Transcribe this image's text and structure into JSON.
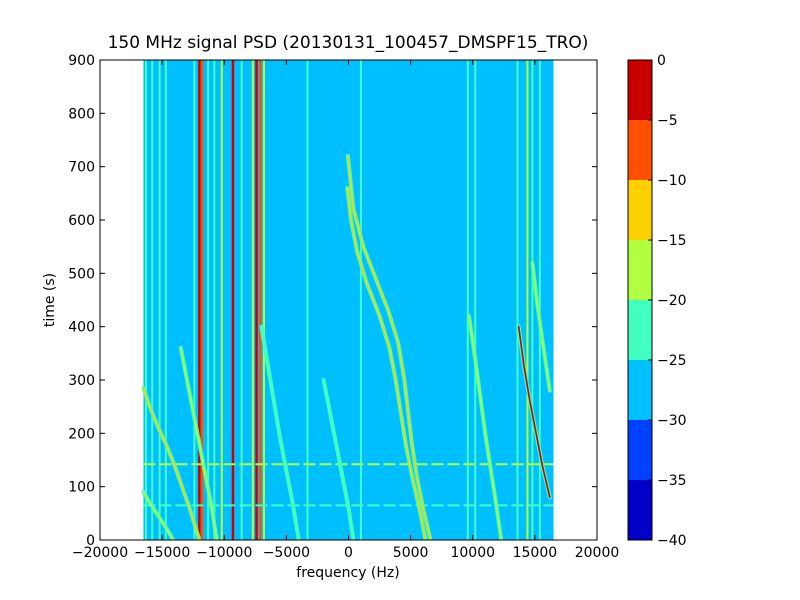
{
  "chart_data": {
    "type": "heatmap",
    "title": "150 MHz signal PSD (20130131_100457_DMSPF15_TRO)",
    "xlabel": "frequency (Hz)",
    "ylabel": "time (s)",
    "xlim": [
      -20000,
      20000
    ],
    "ylim": [
      0,
      900
    ],
    "x_ticks": [
      -20000,
      -15000,
      -10000,
      -5000,
      0,
      5000,
      10000,
      15000,
      20000
    ],
    "y_ticks": [
      0,
      100,
      200,
      300,
      400,
      500,
      600,
      700,
      800,
      900
    ],
    "data_extent_x": [
      -16500,
      16500
    ],
    "colorbar": {
      "levels": [
        -40,
        -35,
        -30,
        -25,
        -20,
        -15,
        -10,
        -5,
        0
      ],
      "ticks": [
        -40,
        -35,
        -30,
        -25,
        -20,
        -15,
        -10,
        -5,
        0
      ],
      "colors": [
        "#0000c8",
        "#0040ff",
        "#00bfff",
        "#40ffc0",
        "#b0ff40",
        "#ffd000",
        "#ff5000",
        "#c80000"
      ],
      "background_level_index": 2
    },
    "vertical_lines": [
      {
        "x": -16300,
        "level": 3
      },
      {
        "x": -15800,
        "level": 3
      },
      {
        "x": -15200,
        "level": 3
      },
      {
        "x": -14700,
        "level": 3
      },
      {
        "x": -12400,
        "level": 3
      },
      {
        "x": -12000,
        "level": 7
      },
      {
        "x": -11800,
        "level": 6
      },
      {
        "x": -11300,
        "level": 3
      },
      {
        "x": -10800,
        "level": 3
      },
      {
        "x": -10200,
        "level": 4
      },
      {
        "x": -9300,
        "level": 7
      },
      {
        "x": -8600,
        "level": 3
      },
      {
        "x": -7700,
        "level": 4
      },
      {
        "x": -7400,
        "level": 7
      },
      {
        "x": -7100,
        "level": 6
      },
      {
        "x": -6800,
        "level": 4
      },
      {
        "x": -3300,
        "level": 3
      },
      {
        "x": 1000,
        "level": 3
      },
      {
        "x": 9600,
        "level": 3
      },
      {
        "x": 10200,
        "level": 3
      },
      {
        "x": 13600,
        "level": 3
      },
      {
        "x": 14400,
        "level": 4
      },
      {
        "x": 14800,
        "level": 3
      },
      {
        "x": 15400,
        "level": 3
      }
    ],
    "horizontal_lines": [
      {
        "y": 65,
        "x_range": [
          -16500,
          16500
        ],
        "level": 3
      },
      {
        "y": 142,
        "x_range": [
          -16500,
          16500
        ],
        "level": 4
      }
    ],
    "curves": [
      {
        "level": 5,
        "points": [
          [
            -16500,
            285
          ],
          [
            -16000,
            250
          ],
          [
            -15300,
            210
          ],
          [
            -14700,
            180
          ],
          [
            -14000,
            140
          ],
          [
            -13400,
            100
          ],
          [
            -12800,
            60
          ],
          [
            -12400,
            30
          ],
          [
            -12000,
            0
          ]
        ]
      },
      {
        "level": 4,
        "points": [
          [
            -16500,
            90
          ],
          [
            -16000,
            70
          ],
          [
            -15300,
            45
          ],
          [
            -14600,
            20
          ],
          [
            -14100,
            0
          ]
        ]
      },
      {
        "level": 4,
        "points": [
          [
            -13500,
            360
          ],
          [
            -13000,
            300
          ],
          [
            -12500,
            240
          ],
          [
            -12000,
            180
          ],
          [
            -11500,
            120
          ],
          [
            -11000,
            60
          ],
          [
            -10600,
            0
          ]
        ]
      },
      {
        "level": 3,
        "points": [
          [
            -7000,
            400
          ],
          [
            -6500,
            330
          ],
          [
            -6000,
            260
          ],
          [
            -5500,
            190
          ],
          [
            -5000,
            130
          ],
          [
            -4500,
            70
          ],
          [
            -4000,
            0
          ]
        ]
      },
      {
        "level": 3,
        "points": [
          [
            -2000,
            300
          ],
          [
            -1500,
            240
          ],
          [
            -1000,
            180
          ],
          [
            -500,
            120
          ],
          [
            0,
            60
          ],
          [
            400,
            0
          ]
        ]
      },
      {
        "level": 5,
        "points": [
          [
            -100,
            660
          ],
          [
            200,
            600
          ],
          [
            700,
            540
          ],
          [
            1500,
            480
          ],
          [
            2500,
            420
          ],
          [
            3300,
            360
          ],
          [
            3800,
            300
          ],
          [
            4200,
            240
          ],
          [
            4600,
            180
          ],
          [
            5100,
            120
          ],
          [
            5700,
            60
          ],
          [
            6200,
            0
          ]
        ]
      },
      {
        "level": 5,
        "points": [
          [
            -50,
            720
          ],
          [
            400,
            620
          ],
          [
            1200,
            550
          ],
          [
            2200,
            490
          ],
          [
            3200,
            430
          ],
          [
            4000,
            370
          ],
          [
            4500,
            300
          ],
          [
            4800,
            240
          ],
          [
            5100,
            180
          ],
          [
            5500,
            120
          ],
          [
            6000,
            60
          ],
          [
            6600,
            0
          ]
        ]
      },
      {
        "level": 4,
        "points": [
          [
            9700,
            420
          ],
          [
            10200,
            340
          ],
          [
            10600,
            270
          ],
          [
            11000,
            200
          ],
          [
            11400,
            140
          ],
          [
            11800,
            80
          ],
          [
            12300,
            0
          ]
        ]
      },
      {
        "level": 7,
        "points": [
          [
            13700,
            400
          ],
          [
            14100,
            330
          ],
          [
            14600,
            260
          ],
          [
            15100,
            200
          ],
          [
            15600,
            140
          ],
          [
            16200,
            80
          ]
        ]
      },
      {
        "level": 4,
        "points": [
          [
            14800,
            520
          ],
          [
            15200,
            440
          ],
          [
            15700,
            360
          ],
          [
            16200,
            280
          ]
        ]
      }
    ]
  }
}
